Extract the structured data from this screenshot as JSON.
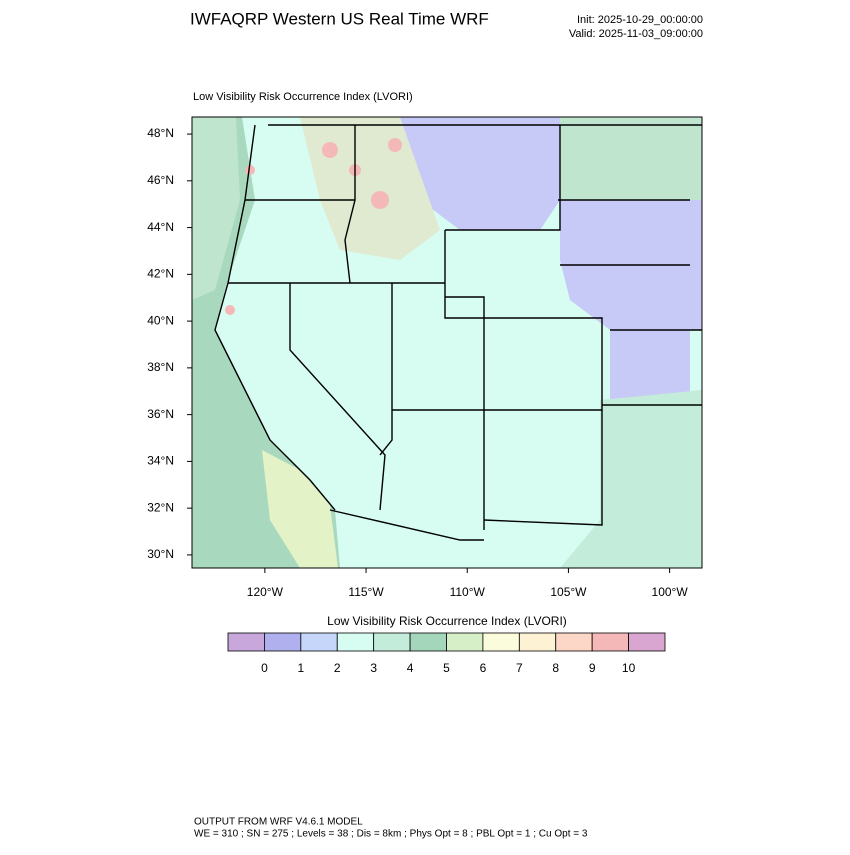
{
  "header": {
    "title": "IWFAQRP Western US Real Time WRF",
    "init": "Init: 2025-10-29_00:00:00",
    "valid": "Valid: 2025-11-03_09:00:00"
  },
  "map": {
    "title": "Low Visibility Risk Occurrence Index  (LVORI)",
    "xlim": [
      -123.6,
      -98.4
    ],
    "ylim": [
      29.44,
      48.73
    ],
    "xticks": [
      {
        "value": -120,
        "label": "120°W"
      },
      {
        "value": -115,
        "label": "115°W"
      },
      {
        "value": -110,
        "label": "110°W"
      },
      {
        "value": -105,
        "label": "105°W"
      },
      {
        "value": -100,
        "label": "100°W"
      }
    ],
    "yticks": [
      {
        "value": 30,
        "label": "30°N"
      },
      {
        "value": 32,
        "label": "32°N"
      },
      {
        "value": 34,
        "label": "34°N"
      },
      {
        "value": 36,
        "label": "36°N"
      },
      {
        "value": 38,
        "label": "38°N"
      },
      {
        "value": 40,
        "label": "40°N"
      },
      {
        "value": 42,
        "label": "42°N"
      },
      {
        "value": 44,
        "label": "44°N"
      },
      {
        "value": 46,
        "label": "46°N"
      },
      {
        "value": 48,
        "label": "48°N"
      }
    ]
  },
  "colorbar": {
    "title": "Low Visibility Risk Occurrence Index  (LVORI)",
    "levels": [
      0,
      1,
      2,
      3,
      4,
      5,
      6,
      7,
      8,
      9,
      10
    ],
    "colors": [
      "#c8a8dc",
      "#b0b0ee",
      "#c6d6fb",
      "#d7fcf1",
      "#c4ecda",
      "#a4d6bc",
      "#d6efc6",
      "#fafcdc",
      "#fdf2d4",
      "#fcd6c6",
      "#f4b8b8",
      "#d8a6d0"
    ]
  },
  "footer": {
    "line1": "OUTPUT FROM WRF V4.6.1 MODEL",
    "line2": "WE = 310 ; SN = 275 ; Levels = 38 ; Dis = 8km ; Phys Opt = 8 ; PBL Opt = 1 ; Cu Opt = 3"
  }
}
